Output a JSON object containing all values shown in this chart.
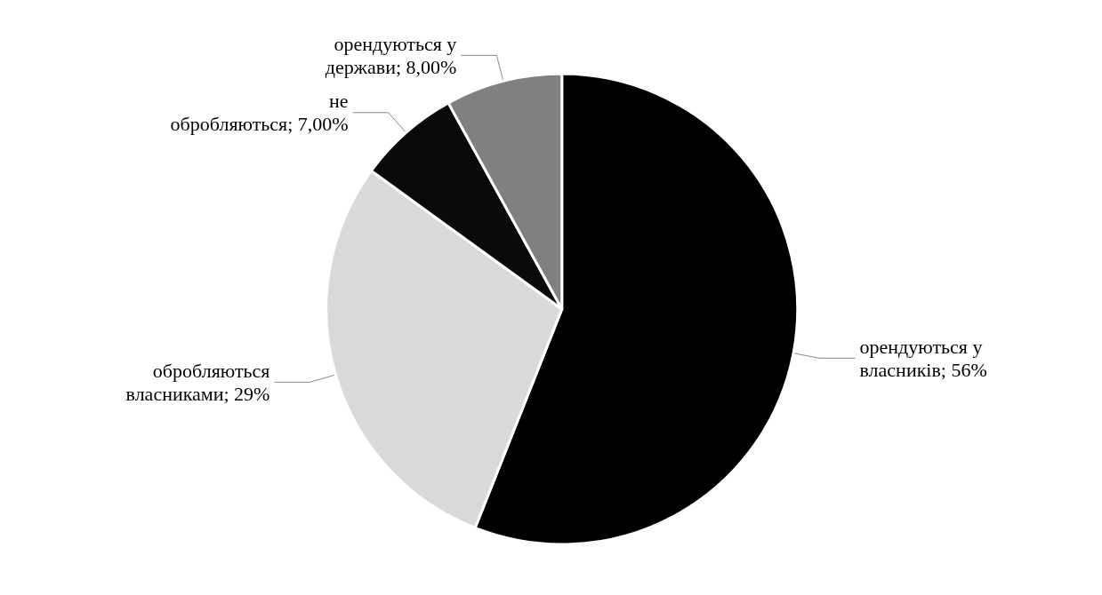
{
  "chart_data": {
    "type": "pie",
    "categories": [
      "орендуються у власників",
      "обробляються власниками",
      "не обробляються",
      "орендуються у держави"
    ],
    "values": [
      56,
      29,
      7,
      8
    ],
    "value_labels": [
      "56%",
      "29%",
      "7,00%",
      "8,00%"
    ],
    "colors": [
      "#000000",
      "#d9d9d9",
      "#0a0a0a",
      "#808080"
    ],
    "legend": false
  }
}
